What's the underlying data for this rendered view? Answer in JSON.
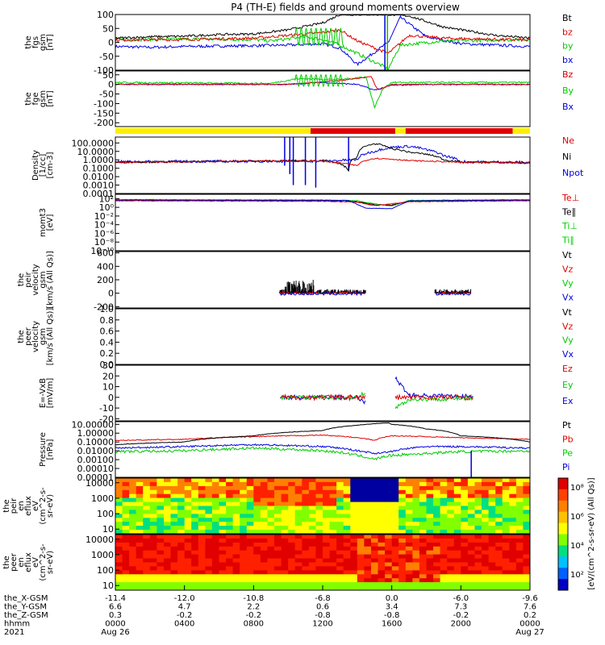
{
  "title": "P4 (TH-E) fields and ground moments overview",
  "colors": {
    "black": "#000000",
    "red": "#e00000",
    "green": "#00cc00",
    "blue": "#0000e0",
    "yellow": "#ffee00",
    "barRed": "#e00000"
  },
  "panels": [
    {
      "id": "fgs",
      "ylabel": [
        "the",
        "fgs",
        "gsm",
        "[nT]"
      ],
      "ticks": [
        "100",
        "50",
        "0",
        "-50",
        "-100"
      ],
      "tickVals": [
        100,
        50,
        0,
        -50,
        -100
      ],
      "ylim": [
        -100,
        100
      ],
      "legend": [
        {
          "text": "Bt",
          "color": "#000000"
        },
        {
          "text": "bz",
          "color": "#e00000"
        },
        {
          "text": "by",
          "color": "#00cc00"
        },
        {
          "text": "bx",
          "color": "#0000e0"
        }
      ]
    },
    {
      "id": "fge",
      "ylabel": [
        "the",
        "fge",
        "gsm",
        "[nT]"
      ],
      "ticks": [
        "50",
        "0",
        "-50",
        "-100",
        "-150",
        "-200"
      ],
      "tickVals": [
        50,
        0,
        -50,
        -100,
        -150,
        -200
      ],
      "ylim": [
        -220,
        70
      ],
      "legend": [
        {
          "text": "Bz",
          "color": "#e00000"
        },
        {
          "text": "By",
          "color": "#00cc00"
        },
        {
          "text": "Bx",
          "color": "#0000e0"
        }
      ]
    },
    {
      "id": "density",
      "ylabel": [
        "Density",
        "[1/cc]",
        "[cm-3]"
      ],
      "ticks": [
        "100.0000",
        "10.0000",
        "1.0000",
        "0.1000",
        "0.0100",
        "0.0010",
        "0.0001"
      ],
      "tickVals": [
        100,
        10,
        1,
        0.1,
        0.01,
        0.001,
        0.0001
      ],
      "ylim": [
        0.0001,
        500
      ],
      "log": true,
      "legend": [
        {
          "text": "Ne",
          "color": "#e00000"
        },
        {
          "text": "Ni",
          "color": "#000000"
        },
        {
          "text": "Npot",
          "color": "#0000e0"
        }
      ]
    },
    {
      "id": "temp",
      "ylabel": [
        "momt3",
        "[eV]"
      ],
      "ticks": [
        "10²",
        "10⁰",
        "10⁻²",
        "10⁻⁴",
        "10⁻⁶",
        "10⁻⁸",
        "10⁻¹⁰"
      ],
      "tickVals": [
        2,
        0,
        -2,
        -4,
        -6,
        -8,
        -10
      ],
      "ylim": [
        -10,
        3
      ],
      "legend": [
        {
          "text": "Te⊥",
          "color": "#e00000"
        },
        {
          "text": "Te∥",
          "color": "#000000"
        },
        {
          "text": "Ti⊥",
          "color": "#00cc00"
        },
        {
          "text": "Ti∥",
          "color": "#00cc00"
        }
      ]
    },
    {
      "id": "peir",
      "ylabel": [
        "the",
        "peir",
        "velocity",
        "gsm",
        "[km/s (All Qs)]"
      ],
      "ticks": [
        "600",
        "400",
        "200",
        "0",
        "-200"
      ],
      "tickVals": [
        600,
        400,
        200,
        0,
        -200
      ],
      "ylim": [
        -220,
        620
      ],
      "legend": [
        {
          "text": "Vt",
          "color": "#000000"
        },
        {
          "text": "Vz",
          "color": "#e00000"
        },
        {
          "text": "Vy",
          "color": "#00cc00"
        },
        {
          "text": "Vx",
          "color": "#0000e0"
        }
      ]
    },
    {
      "id": "peer",
      "ylabel": [
        "the",
        "peer",
        "velocity",
        "gsm",
        "[km/s (All Qs)]"
      ],
      "ticks": [
        "1.0",
        "0.8",
        "0.6",
        "0.4",
        "0.2",
        "0.0"
      ],
      "tickVals": [
        1,
        0.8,
        0.6,
        0.4,
        0.2,
        0
      ],
      "ylim": [
        0,
        1
      ],
      "legend": [
        {
          "text": "Vt",
          "color": "#000000"
        },
        {
          "text": "Vz",
          "color": "#e00000"
        },
        {
          "text": "Vy",
          "color": "#00cc00"
        },
        {
          "text": "Vx",
          "color": "#0000e0"
        }
      ]
    },
    {
      "id": "efield",
      "ylabel": [
        "E=-VxB",
        "[mV/m]"
      ],
      "ticks": [
        "30",
        "20",
        "10",
        "0",
        "-10",
        "-20"
      ],
      "tickVals": [
        30,
        20,
        10,
        0,
        -10,
        -20
      ],
      "ylim": [
        -22,
        30
      ],
      "legend": [
        {
          "text": "Ez",
          "color": "#e00000"
        },
        {
          "text": "Ey",
          "color": "#00cc00"
        },
        {
          "text": "Ex",
          "color": "#0000e0"
        }
      ]
    },
    {
      "id": "pressure",
      "ylabel": [
        "Pressure",
        "[nPa]"
      ],
      "ticks": [
        "10.00000",
        "1.00000",
        "0.10000",
        "0.01000",
        "0.00100",
        "0.00010",
        "0.00001"
      ],
      "tickVals": [
        10,
        1,
        0.1,
        0.01,
        0.001,
        0.0001,
        1e-05
      ],
      "ylim": [
        1e-05,
        20
      ],
      "log": true,
      "legend": [
        {
          "text": "Pt",
          "color": "#000000"
        },
        {
          "text": "Pb",
          "color": "#e00000"
        },
        {
          "text": "Pe",
          "color": "#00cc00"
        },
        {
          "text": "Pi",
          "color": "#0000e0"
        }
      ]
    },
    {
      "id": "peir_eflux",
      "ylabel": [
        "the",
        "peir",
        "en",
        "eflux",
        "eV",
        "(cm^2-s-",
        "sr-eV)"
      ],
      "ticks": [
        "10000",
        "1000",
        "100",
        "10"
      ],
      "tickVals": [
        10000,
        1000,
        100,
        10
      ],
      "ylim": [
        5,
        20000
      ],
      "log": true,
      "spectro": true
    },
    {
      "id": "peer_eflux",
      "ylabel": [
        "the",
        "peer",
        "en",
        "eflux",
        "eV",
        "(cm^2-s-",
        "sr-eV)"
      ],
      "ticks": [
        "10000",
        "1000",
        "100",
        "10"
      ],
      "tickVals": [
        10000,
        1000,
        100,
        10
      ],
      "ylim": [
        5,
        20000
      ],
      "log": true,
      "spectro": true
    }
  ],
  "colorbar": {
    "ticks": [
      "10⁸",
      "10⁶",
      "10⁴",
      "10²"
    ],
    "label": "[eV/(cm^2-s-sr-eV) (All Qs)]"
  },
  "xaxis": {
    "rowLabels": [
      "the_X-GSM",
      "the_Y-GSM",
      "the_Z-GSM",
      "hhmm",
      "2021"
    ],
    "columns": [
      {
        "x": "-11.4",
        "y": "6.6",
        "z": "0.3",
        "t": "0000",
        "d": "Aug 26"
      },
      {
        "x": "-12.0",
        "y": "4.7",
        "z": "-0.2",
        "t": "0400",
        "d": ""
      },
      {
        "x": "-10.8",
        "y": "2.2",
        "z": "-0.2",
        "t": "0800",
        "d": ""
      },
      {
        "x": "-6.8",
        "y": "0.6",
        "z": "-0.8",
        "t": "1200",
        "d": ""
      },
      {
        "x": "0.0",
        "y": "3.4",
        "z": "-0.8",
        "t": "1600",
        "d": ""
      },
      {
        "x": "-6.0",
        "y": "7.3",
        "z": "-0.2",
        "t": "2000",
        "d": ""
      },
      {
        "x": "-9.6",
        "y": "7.6",
        "z": "0.2",
        "t": "0000",
        "d": "Aug 27"
      }
    ]
  },
  "chart_data": {
    "type": "line",
    "title": "P4 (TH-E) fields and ground moments overview",
    "x_hours": [
      0,
      4,
      8,
      12,
      16,
      20,
      24
    ],
    "x_tick_labels": [
      "0000",
      "0400",
      "0800",
      "1200",
      "1600",
      "2000",
      "0000"
    ],
    "series": [
      {
        "name": "Bt",
        "x": [
          0,
          2,
          4,
          6,
          8,
          10,
          12,
          13,
          14.5,
          15.8,
          17,
          19,
          21,
          22,
          24
        ],
        "values": [
          15,
          20,
          22,
          28,
          30,
          45,
          70,
          100,
          100,
          100,
          95,
          55,
          35,
          25,
          15
        ]
      },
      {
        "name": "bz",
        "x": [
          0,
          4,
          8,
          10,
          11,
          12,
          13,
          14,
          15.8,
          17,
          19,
          21,
          24
        ],
        "values": [
          8,
          10,
          15,
          25,
          30,
          35,
          45,
          5,
          -40,
          25,
          15,
          12,
          8
        ]
      },
      {
        "name": "by",
        "x": [
          0,
          4,
          8,
          9,
          11,
          12,
          13,
          14,
          15.8,
          16.5,
          19,
          24
        ],
        "values": [
          10,
          12,
          10,
          5,
          20,
          10,
          -10,
          -40,
          -95,
          -10,
          5,
          10
        ]
      },
      {
        "name": "bx",
        "x": [
          0,
          2,
          4,
          8,
          10,
          12,
          13,
          14,
          15.8,
          16.5,
          18,
          20,
          22,
          24
        ],
        "values": [
          -15,
          -18,
          -15,
          -12,
          -10,
          -5,
          -20,
          -80,
          0,
          90,
          20,
          -5,
          -10,
          -15
        ]
      },
      {
        "name": "Ni",
        "x": [
          0,
          4,
          8,
          12,
          13.5,
          14,
          15,
          15.8,
          16,
          17,
          19,
          20,
          22,
          24
        ],
        "values": [
          0.5,
          0.6,
          0.7,
          0.8,
          0.05,
          2,
          80,
          30,
          20,
          8,
          1,
          0.5,
          0.5,
          0.4
        ]
      },
      {
        "name": "Ne",
        "x": [
          0,
          4,
          8,
          12,
          13.5,
          14,
          15,
          16,
          17,
          19,
          20,
          22,
          24
        ],
        "values": [
          0.5,
          0.6,
          0.7,
          0.7,
          0.3,
          0.2,
          1.5,
          1.2,
          0.8,
          0.6,
          0.5,
          0.5,
          0.4
        ]
      },
      {
        "name": "Pt",
        "x": [
          0,
          4,
          8,
          12,
          14,
          15.8,
          16,
          18,
          20,
          24
        ],
        "values": [
          0.05,
          0.1,
          0.5,
          2,
          8,
          15,
          10,
          3,
          0.5,
          0.1
        ]
      },
      {
        "name": "Pi",
        "x": [
          0,
          4,
          8,
          12,
          14,
          15,
          16,
          18,
          20,
          24
        ],
        "values": [
          0.02,
          0.03,
          0.05,
          0.03,
          0.01,
          0.005,
          0.008,
          0.03,
          0.03,
          0.02
        ]
      },
      {
        "name": "Pe",
        "x": [
          0,
          4,
          8,
          12,
          14,
          15,
          16,
          18,
          20,
          24
        ],
        "values": [
          0.008,
          0.01,
          0.02,
          0.01,
          0.003,
          0.001,
          0.003,
          0.005,
          0.008,
          0.01
        ]
      }
    ],
    "xlabel": "hhmm",
    "grid": false
  }
}
